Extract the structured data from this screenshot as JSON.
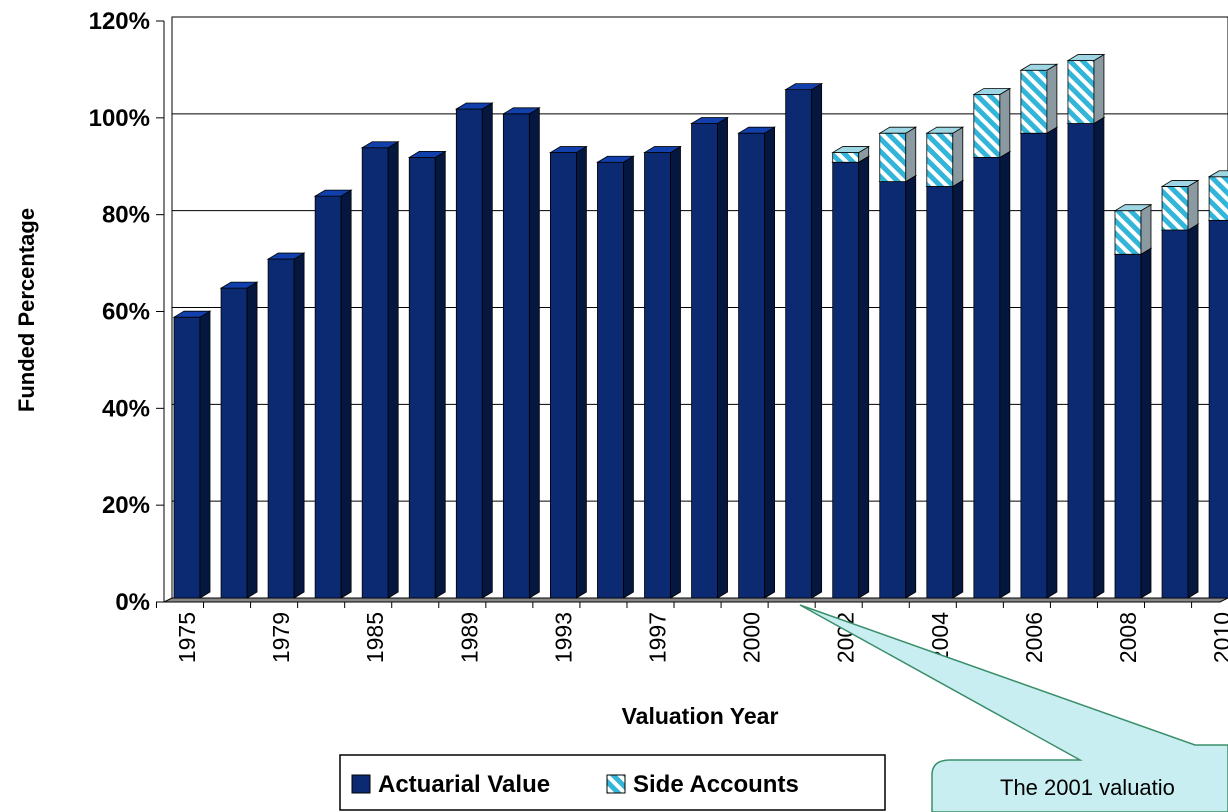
{
  "chart_data": {
    "type": "bar",
    "stacked": true,
    "x_label": "Valuation Year",
    "y_label": "Funded Percentage",
    "categories": [
      "1975",
      null,
      "1979",
      null,
      "1985",
      null,
      "1989",
      null,
      "1993",
      null,
      "1997",
      null,
      "2000",
      null,
      "2002",
      null,
      "2004",
      null,
      "2006",
      null,
      "2008",
      null,
      "2010"
    ],
    "series": [
      {
        "name": "Actuarial Value",
        "color": "#0b2a72",
        "values": [
          58,
          64,
          70,
          83,
          93,
          91,
          101,
          100,
          92,
          90,
          92,
          98,
          96,
          105,
          90,
          86,
          85,
          91,
          96,
          98,
          71,
          76,
          78
        ]
      },
      {
        "name": "Side Accounts",
        "color": "#33b5d9",
        "pattern": "hatch",
        "values": [
          0,
          0,
          0,
          0,
          0,
          0,
          0,
          0,
          0,
          0,
          0,
          0,
          0,
          0,
          2,
          10,
          11,
          13,
          13,
          13,
          9,
          9,
          9
        ]
      }
    ],
    "ylim": [
      0,
      120
    ],
    "yticks": [
      {
        "value": 0,
        "label": "0%"
      },
      {
        "value": 20,
        "label": "20%"
      },
      {
        "value": 40,
        "label": "40%"
      },
      {
        "value": 60,
        "label": "60%"
      },
      {
        "value": 80,
        "label": "80%"
      },
      {
        "value": 100,
        "label": "100%"
      },
      {
        "value": 120,
        "label": "120%"
      }
    ],
    "grid": true,
    "legend": "bottom",
    "annotation": "The 2001 valuatio"
  }
}
